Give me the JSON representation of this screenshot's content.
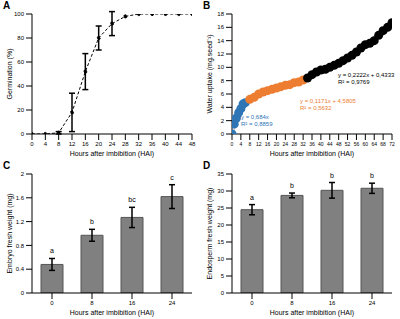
{
  "chart_data": [
    {
      "panel": "A",
      "type": "line",
      "x_label": "Hours after imbibition (HAI)",
      "y_label": "Germination (%)",
      "x": [
        0,
        4,
        8,
        12,
        16,
        20,
        24,
        28,
        32,
        36,
        40,
        44,
        48
      ],
      "values": [
        0,
        0,
        1,
        18,
        52,
        80,
        92,
        98,
        100,
        100,
        100,
        100,
        100
      ],
      "errors": [
        0,
        0,
        1,
        16,
        15,
        10,
        10,
        0,
        0,
        0,
        0,
        0,
        0
      ],
      "color": "#000000",
      "marker": "circle",
      "line_style": "dashed",
      "xlim": [
        0,
        48
      ],
      "xticks": [
        0,
        4,
        8,
        12,
        16,
        20,
        24,
        28,
        32,
        36,
        40,
        44,
        48
      ],
      "ylim": [
        0,
        100
      ],
      "yticks": [
        0,
        20,
        40,
        60,
        80,
        100
      ]
    },
    {
      "panel": "B",
      "type": "scatter",
      "x_label": "Hours after imbibition (HAI)",
      "y_label": "Water uptake (mg.seed⁻¹)",
      "series": [
        {
          "color": "#2e75b6",
          "x": [
            0,
            1,
            2,
            3,
            4,
            5,
            6
          ],
          "values": [
            0,
            1.5,
            2.4,
            3.2,
            3.8,
            4.5,
            4.7
          ],
          "fit": {
            "slope": 0.684,
            "intercept": 0,
            "equation": "y = 0,684x",
            "r2": "R² = 0,8859"
          }
        },
        {
          "color": "#ed7d31",
          "x": [
            8,
            10,
            12,
            14,
            16,
            18,
            20,
            22,
            24,
            26,
            28,
            30,
            32
          ],
          "values": [
            5.2,
            5.5,
            6.0,
            6.3,
            6.5,
            6.7,
            6.9,
            7.1,
            7.3,
            7.4,
            7.7,
            7.8,
            8.1
          ],
          "fit": {
            "slope": 0.1171,
            "intercept": 4.5805,
            "equation": "y = 0,1171x + 4,5805",
            "r2": "R² = 0,5632"
          }
        },
        {
          "color": "#000000",
          "x": [
            34,
            36,
            38,
            40,
            42,
            44,
            46,
            48,
            50,
            52,
            54,
            56,
            58,
            60,
            62,
            64,
            66,
            68,
            70,
            72
          ],
          "values": [
            8.4,
            8.9,
            9.3,
            9.6,
            9.7,
            10.0,
            10.3,
            10.6,
            11.0,
            11.4,
            11.8,
            12.3,
            12.9,
            13.4,
            13.6,
            14.0,
            14.8,
            15.5,
            16.0,
            16.7
          ],
          "fit": {
            "slope": 0.2222,
            "intercept": 0.4333,
            "equation": "y = 0,2222x + 0,4333",
            "r2": "R² = 0,9769"
          }
        }
      ],
      "marker": "circle",
      "xlim": [
        0,
        72
      ],
      "xticks": [
        0,
        4,
        8,
        12,
        16,
        20,
        24,
        28,
        32,
        36,
        40,
        44,
        48,
        52,
        56,
        60,
        64,
        68,
        72
      ],
      "ylim": [
        0,
        18
      ],
      "yticks": [
        0,
        2,
        4,
        6,
        8,
        10,
        12,
        14,
        16,
        18
      ]
    },
    {
      "panel": "C",
      "type": "bar",
      "x_label": "Hours after imbibition (HAI)",
      "y_label": "Embryo fresh weight (mg)",
      "categories": [
        "0",
        "8",
        "16",
        "24"
      ],
      "values": [
        0.48,
        0.97,
        1.27,
        1.62
      ],
      "errors": [
        0.1,
        0.1,
        0.17,
        0.2
      ],
      "letters": [
        "a",
        "b",
        "bc",
        "c"
      ],
      "color": "#808080",
      "ylim": [
        0,
        2
      ],
      "yticks": [
        0,
        0.4,
        0.8,
        1.2,
        1.6,
        2
      ]
    },
    {
      "panel": "D",
      "type": "bar",
      "x_label": "Hours after imbibition (HAI)",
      "y_label": "Endosperm fresh weight (mg)",
      "categories": [
        "0",
        "8",
        "16",
        "24"
      ],
      "values": [
        24.5,
        28.7,
        30.2,
        30.8
      ],
      "errors": [
        1.5,
        0.7,
        2.3,
        1.5
      ],
      "letters": [
        "a",
        "b",
        "b",
        "b"
      ],
      "color": "#808080",
      "ylim": [
        0,
        35
      ],
      "yticks": [
        0,
        5,
        10,
        15,
        20,
        25,
        30,
        35
      ]
    }
  ]
}
